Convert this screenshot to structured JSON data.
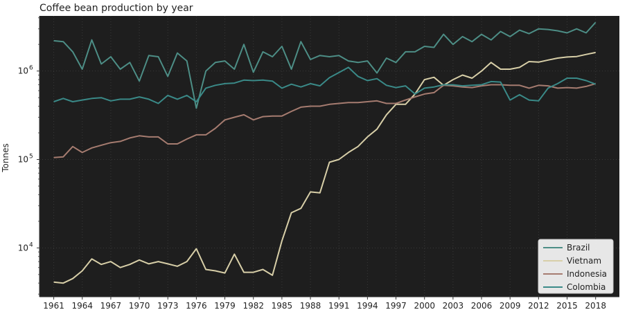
{
  "chart_data": {
    "type": "line",
    "title": "Coffee bean production by year",
    "ylabel": "Tonnes",
    "xlabel": "",
    "yscale": "log",
    "ylim": [
      2800,
      4200000
    ],
    "xlim": [
      1959.5,
      2020.5
    ],
    "x_ticks": [
      1961,
      1964,
      1967,
      1970,
      1973,
      1976,
      1979,
      1982,
      1985,
      1988,
      1991,
      1994,
      1997,
      2000,
      2003,
      2006,
      2009,
      2012,
      2015,
      2018
    ],
    "y_ticks": [
      {
        "value": 10000,
        "label_base": "10",
        "label_exp": "4"
      },
      {
        "value": 100000,
        "label_base": "10",
        "label_exp": "5"
      },
      {
        "value": 1000000,
        "label_base": "10",
        "label_exp": "6"
      }
    ],
    "grid": true,
    "legend_position": "bottom-right",
    "background": "#1e1e1e",
    "x": [
      1961,
      1962,
      1963,
      1964,
      1965,
      1966,
      1967,
      1968,
      1969,
      1970,
      1971,
      1972,
      1973,
      1974,
      1975,
      1976,
      1977,
      1978,
      1979,
      1980,
      1981,
      1982,
      1983,
      1984,
      1985,
      1986,
      1987,
      1988,
      1989,
      1990,
      1991,
      1992,
      1993,
      1994,
      1995,
      1996,
      1997,
      1998,
      1999,
      2000,
      2001,
      2002,
      2003,
      2004,
      2005,
      2006,
      2007,
      2008,
      2009,
      2010,
      2011,
      2012,
      2013,
      2014,
      2015,
      2016,
      2017,
      2018
    ],
    "series": [
      {
        "name": "Brazil",
        "color": "#4d8e86",
        "values": [
          2200000,
          2150000,
          1650000,
          1050000,
          2250000,
          1200000,
          1450000,
          1050000,
          1250000,
          770000,
          1500000,
          1450000,
          870000,
          1600000,
          1300000,
          380000,
          1000000,
          1250000,
          1300000,
          1050000,
          2000000,
          970000,
          1650000,
          1450000,
          1900000,
          1050000,
          2150000,
          1350000,
          1500000,
          1450000,
          1500000,
          1300000,
          1250000,
          1300000,
          950000,
          1400000,
          1250000,
          1650000,
          1650000,
          1900000,
          1850000,
          2600000,
          2000000,
          2450000,
          2150000,
          2600000,
          2250000,
          2800000,
          2450000,
          2900000,
          2650000,
          3000000,
          2950000,
          2850000,
          2700000,
          3000000,
          2700000,
          3550000
        ]
      },
      {
        "name": "Vietnam",
        "color": "#d8cfa8",
        "values": [
          4100,
          4000,
          4500,
          5500,
          7500,
          6500,
          7000,
          6000,
          6500,
          7300,
          6600,
          7000,
          6600,
          6200,
          7000,
          9800,
          5700,
          5500,
          5200,
          8500,
          5300,
          5300,
          5700,
          4900,
          12000,
          25000,
          28000,
          43000,
          42000,
          93000,
          100000,
          120000,
          140000,
          180000,
          220000,
          320000,
          420000,
          420000,
          550000,
          800000,
          850000,
          690000,
          800000,
          900000,
          830000,
          1000000,
          1250000,
          1050000,
          1050000,
          1100000,
          1280000,
          1260000,
          1330000,
          1400000,
          1440000,
          1460000,
          1540000,
          1620000
        ]
      },
      {
        "name": "Indonesia",
        "color": "#a67c70",
        "values": [
          105000,
          107000,
          140000,
          120000,
          135000,
          145000,
          155000,
          160000,
          175000,
          185000,
          180000,
          180000,
          150000,
          150000,
          170000,
          190000,
          190000,
          225000,
          280000,
          300000,
          320000,
          280000,
          305000,
          310000,
          310000,
          350000,
          390000,
          400000,
          400000,
          420000,
          430000,
          440000,
          440000,
          450000,
          460000,
          430000,
          430000,
          470000,
          510000,
          550000,
          570000,
          690000,
          680000,
          660000,
          650000,
          680000,
          700000,
          700000,
          690000,
          690000,
          640000,
          690000,
          680000,
          640000,
          650000,
          640000,
          670000,
          720000
        ]
      },
      {
        "name": "Colombia",
        "color": "#3a8a88",
        "values": [
          450000,
          490000,
          450000,
          470000,
          490000,
          500000,
          460000,
          480000,
          480000,
          510000,
          480000,
          430000,
          530000,
          480000,
          530000,
          450000,
          640000,
          690000,
          720000,
          730000,
          790000,
          780000,
          790000,
          770000,
          640000,
          710000,
          660000,
          720000,
          680000,
          840000,
          960000,
          1100000,
          870000,
          780000,
          820000,
          690000,
          650000,
          680000,
          550000,
          640000,
          660000,
          700000,
          700000,
          680000,
          690000,
          700000,
          760000,
          750000,
          470000,
          540000,
          470000,
          460000,
          640000,
          720000,
          830000,
          830000,
          780000,
          710000
        ]
      }
    ]
  }
}
